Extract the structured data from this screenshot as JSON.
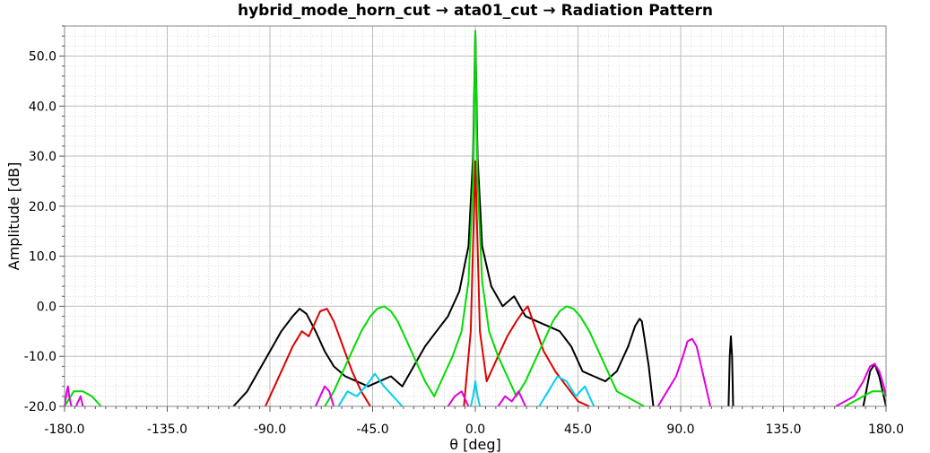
{
  "chart_data": {
    "type": "line",
    "title": "hybrid_mode_horn_cut → ata01_cut → Radiation Pattern",
    "xlabel": "θ [deg]",
    "ylabel": "Amplitude [dB]",
    "xlim": [
      -180,
      180
    ],
    "ylim": [
      -20,
      56
    ],
    "xticks": [
      "-180.0",
      "-135.0",
      "-90.0",
      "-45.0",
      "0.0",
      "45.0",
      "90.0",
      "135.0",
      "180.0"
    ],
    "yticks": [
      "-20.0",
      "-10.0",
      "0.0",
      "10.0",
      "20.0",
      "30.0",
      "40.0",
      "50.0"
    ],
    "grid": true,
    "series": [
      {
        "color": "#000000",
        "x": [
          -106,
          -100,
          -95,
          -90,
          -85,
          -80,
          -77,
          -74,
          -70,
          -66,
          -62,
          -57,
          -52,
          -47,
          -42,
          -37,
          -32,
          -27,
          -22,
          -17,
          -12,
          -7,
          -3,
          -1,
          0,
          1,
          3,
          7,
          12,
          17,
          22,
          27,
          32,
          37,
          42,
          47,
          52,
          57,
          62,
          67,
          70,
          72,
          73,
          74,
          76,
          78
        ],
        "y": [
          -20,
          -17,
          -13,
          -9,
          -5,
          -2,
          -0.5,
          -1.5,
          -5,
          -9,
          -12,
          -14,
          -15,
          -16,
          -15,
          -14,
          -16,
          -12,
          -8,
          -5,
          -2,
          3,
          12,
          30,
          55,
          30,
          12,
          4,
          0,
          2,
          -2,
          -3,
          -4,
          -5,
          -8,
          -13,
          -14,
          -15,
          -13,
          -8,
          -4,
          -2.5,
          -3,
          -6,
          -12,
          -20
        ]
      },
      {
        "color": "#000000",
        "x": [
          111,
          111.5,
          112,
          112.5,
          113
        ],
        "y": [
          -20,
          -10,
          -6,
          -10,
          -20
        ]
      },
      {
        "color": "#000000",
        "x": [
          170,
          173,
          175,
          177,
          180
        ],
        "y": [
          -20,
          -13,
          -11.5,
          -14,
          -20
        ]
      },
      {
        "color": "#e00000",
        "x": [
          -92,
          -88,
          -84,
          -80,
          -76,
          -73,
          -70,
          -68,
          -65,
          -62,
          -58,
          -54,
          -50,
          -46
        ],
        "y": [
          -20,
          -16,
          -12,
          -8,
          -5,
          -6,
          -3,
          -1,
          -0.5,
          -3,
          -8,
          -13,
          -17,
          -20
        ]
      },
      {
        "color": "#e00000",
        "x": [
          -5,
          -2,
          0,
          2,
          5,
          10,
          14,
          18,
          21,
          23,
          26,
          30,
          35,
          40,
          45,
          50
        ],
        "y": [
          -20,
          -5,
          29,
          -5,
          -15,
          -10,
          -6,
          -3,
          -1,
          0,
          -4,
          -9,
          -13,
          -16,
          -19,
          -20
        ]
      },
      {
        "color": "#00dd00",
        "x": [
          -180,
          -176,
          -172,
          -168,
          -164
        ],
        "y": [
          -20,
          -17,
          -17,
          -18,
          -20
        ]
      },
      {
        "color": "#00dd00",
        "x": [
          -66,
          -62,
          -58,
          -54,
          -50,
          -46,
          -43,
          -40,
          -37,
          -34,
          -30,
          -26,
          -22,
          -18,
          -14,
          -10,
          -6,
          -3,
          -1,
          0,
          1,
          3,
          6,
          10,
          14,
          18,
          22,
          26,
          30,
          34,
          37,
          40,
          43,
          46,
          50,
          54,
          58,
          62,
          66,
          70,
          74
        ],
        "y": [
          -20,
          -17,
          -13,
          -9,
          -5,
          -2,
          -0.5,
          0,
          -1,
          -3,
          -7,
          -11,
          -15,
          -18,
          -14,
          -10,
          -5,
          5,
          25,
          55,
          25,
          5,
          -5,
          -10,
          -14,
          -18,
          -15,
          -11,
          -7,
          -3,
          -1,
          0,
          -0.5,
          -2,
          -5,
          -9,
          -13,
          -17,
          -18,
          -19,
          -20
        ]
      },
      {
        "color": "#00dd00",
        "x": [
          162,
          166,
          170,
          174,
          178,
          180
        ],
        "y": [
          -20,
          -19,
          -18,
          -17,
          -17,
          -18
        ]
      },
      {
        "color": "#00d0f0",
        "x": [
          -60,
          -56,
          -52,
          -48,
          -44,
          -40,
          -36,
          -32
        ],
        "y": [
          -20,
          -17,
          -18,
          -16,
          -13.5,
          -16,
          -18,
          -20
        ]
      },
      {
        "color": "#00d0f0",
        "x": [
          -2,
          -1,
          0,
          1,
          2
        ],
        "y": [
          -20,
          -18,
          -15,
          -18,
          -20
        ]
      },
      {
        "color": "#00d0f0",
        "x": [
          28,
          32,
          36,
          40,
          44,
          48,
          52
        ],
        "y": [
          -20,
          -17,
          -14,
          -15,
          -18,
          -16,
          -20
        ]
      },
      {
        "color": "#e000e0",
        "x": [
          -180,
          -179,
          -178.5,
          -178,
          -177
        ],
        "y": [
          -20,
          -17,
          -16,
          -18,
          -20
        ]
      },
      {
        "color": "#e000e0",
        "x": [
          -175,
          -174,
          -173,
          -172
        ],
        "y": [
          -20,
          -19,
          -18,
          -20
        ]
      },
      {
        "color": "#e000e0",
        "x": [
          -70,
          -68,
          -66,
          -64,
          -62
        ],
        "y": [
          -20,
          -18,
          -16,
          -17,
          -20
        ]
      },
      {
        "color": "#e000e0",
        "x": [
          -12,
          -9,
          -6,
          -3
        ],
        "y": [
          -20,
          -18,
          -17,
          -20
        ]
      },
      {
        "color": "#e000e0",
        "x": [
          10,
          13,
          16,
          19,
          22
        ],
        "y": [
          -20,
          -18,
          -19,
          -17,
          -20
        ]
      },
      {
        "color": "#e000e0",
        "x": [
          80,
          84,
          88,
          91,
          93,
          95,
          97,
          99,
          101,
          103
        ],
        "y": [
          -20,
          -17,
          -14,
          -10,
          -7,
          -6.5,
          -8,
          -12,
          -16,
          -20
        ]
      },
      {
        "color": "#e000e0",
        "x": [
          158,
          162,
          166,
          170,
          173,
          175,
          177,
          179,
          180
        ],
        "y": [
          -20,
          -19,
          -18,
          -15,
          -12,
          -11.5,
          -13,
          -16,
          -18
        ]
      }
    ]
  }
}
